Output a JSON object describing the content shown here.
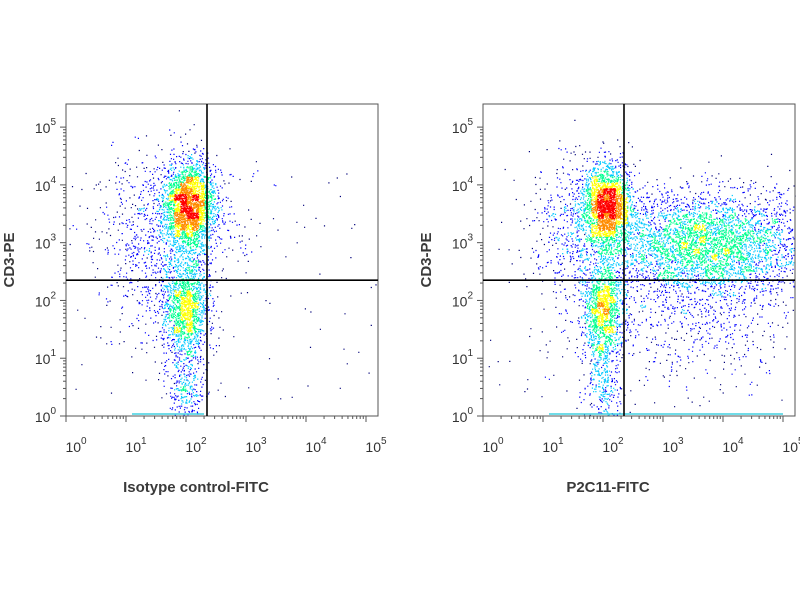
{
  "chart_data": [
    {
      "type": "scatter",
      "xlabel": "Isotype control-FITC",
      "ylabel": "CD3-PE",
      "x_ticks": [
        "0",
        "1",
        "2",
        "3",
        "4",
        "5"
      ],
      "y_ticks": [
        "0",
        "1",
        "2",
        "3",
        "4",
        "5"
      ],
      "tick_base": "10",
      "xlim": [
        0,
        5.2
      ],
      "ylim": [
        0,
        5.4
      ],
      "gate": {
        "x": 2.35,
        "y": 2.35
      },
      "colors": [
        "#00007a",
        "#0000ff",
        "#00c8ff",
        "#00ff90",
        "#ffff00",
        "#ff8c00",
        "#ff0000"
      ],
      "populations": [
        {
          "cx": 2.05,
          "cy": 3.65,
          "sx": 0.22,
          "sy": 0.38,
          "n": 2600
        },
        {
          "cx": 2.0,
          "cy": 1.9,
          "sx": 0.2,
          "sy": 0.45,
          "n": 1500
        },
        {
          "cx": 2.0,
          "cy": 0.5,
          "sx": 0.15,
          "sy": 0.4,
          "n": 300
        },
        {
          "cx": 1.4,
          "cy": 3.0,
          "sx": 0.45,
          "sy": 0.8,
          "n": 700
        },
        {
          "cx": 2.7,
          "cy": 3.4,
          "sx": 0.25,
          "sy": 0.5,
          "n": 60
        }
      ]
    },
    {
      "type": "scatter",
      "xlabel": "P2C11-FITC",
      "ylabel": "CD3-PE",
      "x_ticks": [
        "0",
        "1",
        "2",
        "3",
        "4",
        "5"
      ],
      "y_ticks": [
        "0",
        "1",
        "2",
        "3",
        "4",
        "5"
      ],
      "tick_base": "10",
      "xlim": [
        0,
        5.2
      ],
      "ylim": [
        0,
        5.4
      ],
      "gate": {
        "x": 2.35,
        "y": 2.35
      },
      "colors": [
        "#00007a",
        "#0000ff",
        "#00c8ff",
        "#00ff90",
        "#ffff00",
        "#ff8c00",
        "#ff0000"
      ],
      "populations": [
        {
          "cx": 2.05,
          "cy": 3.65,
          "sx": 0.2,
          "sy": 0.36,
          "n": 2200
        },
        {
          "cx": 2.0,
          "cy": 1.85,
          "sx": 0.17,
          "sy": 0.45,
          "n": 1300
        },
        {
          "cx": 2.0,
          "cy": 0.5,
          "sx": 0.15,
          "sy": 0.4,
          "n": 250
        },
        {
          "cx": 1.5,
          "cy": 3.2,
          "sx": 0.4,
          "sy": 0.7,
          "n": 500
        },
        {
          "cx": 3.7,
          "cy": 3.0,
          "sx": 0.85,
          "sy": 0.45,
          "n": 3800
        },
        {
          "cx": 3.5,
          "cy": 1.8,
          "sx": 0.9,
          "sy": 0.6,
          "n": 700
        }
      ]
    }
  ]
}
